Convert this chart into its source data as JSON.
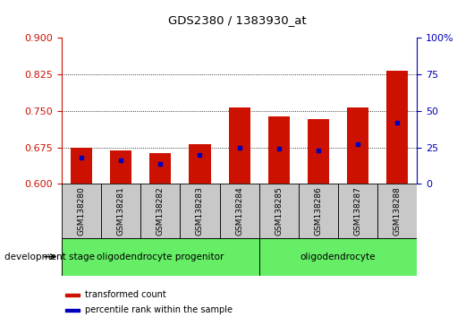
{
  "title": "GDS2380 / 1383930_at",
  "samples": [
    "GSM138280",
    "GSM138281",
    "GSM138282",
    "GSM138283",
    "GSM138284",
    "GSM138285",
    "GSM138286",
    "GSM138287",
    "GSM138288"
  ],
  "transformed_count": [
    0.675,
    0.668,
    0.663,
    0.682,
    0.757,
    0.738,
    0.733,
    0.758,
    0.832
  ],
  "percentile_rank_pct": [
    18,
    16,
    14,
    20,
    25,
    24,
    23,
    27,
    42
  ],
  "ymin": 0.6,
  "ymax": 0.9,
  "yticks_left": [
    0.6,
    0.675,
    0.75,
    0.825,
    0.9
  ],
  "yticks_right": [
    0,
    25,
    50,
    75,
    100
  ],
  "groups": [
    {
      "label": "oligodendrocyte progenitor",
      "start": 0,
      "end": 5
    },
    {
      "label": "oligodendrocyte",
      "start": 5,
      "end": 9
    }
  ],
  "bar_color": "#CC1100",
  "percentile_color": "#0000BB",
  "bar_width": 0.55,
  "left_axis_color": "#CC1100",
  "right_axis_color": "#0000BB",
  "group_box_color": "#66EE66",
  "xtick_bg_color": "#C8C8C8",
  "development_stage_label": "development stage",
  "legend_items": [
    {
      "label": "transformed count",
      "color": "#CC1100"
    },
    {
      "label": "percentile rank within the sample",
      "color": "#0000BB"
    }
  ]
}
